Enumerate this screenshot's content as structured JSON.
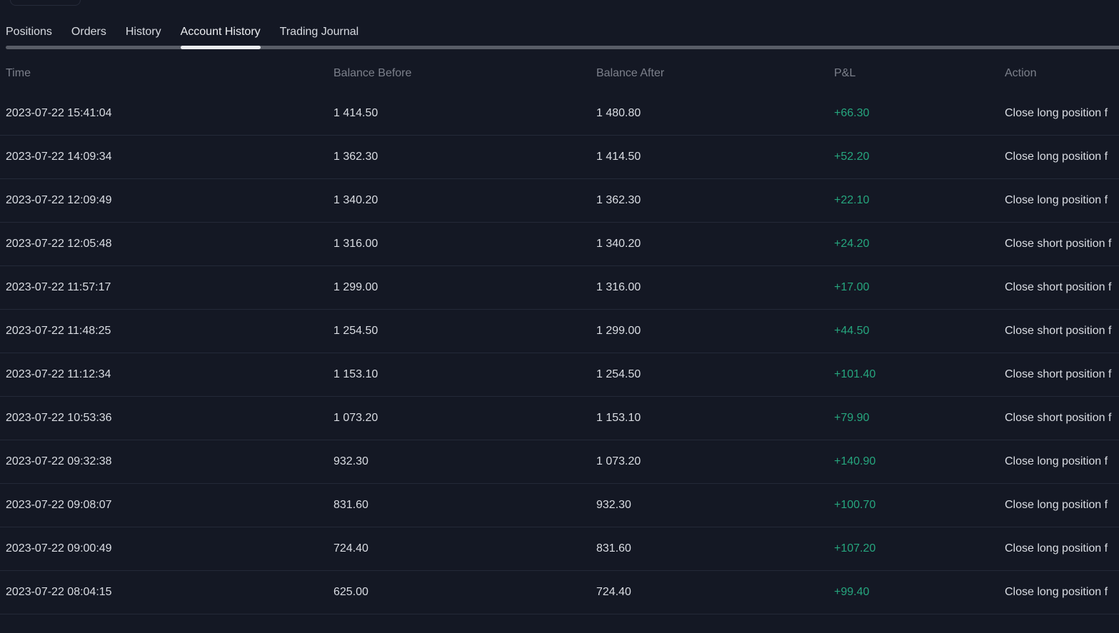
{
  "theme": {
    "background": "#141824",
    "divider": "#242938",
    "text_primary": "#dadde3",
    "text_muted": "#7c808b",
    "tab_track": "#585c66",
    "tab_indicator": "#e9ebee",
    "pnl_positive": "#26a67e"
  },
  "tabs": {
    "items": [
      {
        "label": "Positions",
        "active": false
      },
      {
        "label": "Orders",
        "active": false
      },
      {
        "label": "History",
        "active": false
      },
      {
        "label": "Account History",
        "active": true
      },
      {
        "label": "Trading Journal",
        "active": false
      }
    ]
  },
  "table": {
    "columns": [
      "Time",
      "Balance Before",
      "Balance After",
      "P&L",
      "Action"
    ],
    "rows": [
      {
        "time": "2023-07-22 15:41:04",
        "balance_before": "1 414.50",
        "balance_after": "1 480.80",
        "pnl": "+66.30",
        "action": "Close long position f"
      },
      {
        "time": "2023-07-22 14:09:34",
        "balance_before": "1 362.30",
        "balance_after": "1 414.50",
        "pnl": "+52.20",
        "action": "Close long position f"
      },
      {
        "time": "2023-07-22 12:09:49",
        "balance_before": "1 340.20",
        "balance_after": "1 362.30",
        "pnl": "+22.10",
        "action": "Close long position f"
      },
      {
        "time": "2023-07-22 12:05:48",
        "balance_before": "1 316.00",
        "balance_after": "1 340.20",
        "pnl": "+24.20",
        "action": "Close short position f"
      },
      {
        "time": "2023-07-22 11:57:17",
        "balance_before": "1 299.00",
        "balance_after": "1 316.00",
        "pnl": "+17.00",
        "action": "Close short position f"
      },
      {
        "time": "2023-07-22 11:48:25",
        "balance_before": "1 254.50",
        "balance_after": "1 299.00",
        "pnl": "+44.50",
        "action": "Close short position f"
      },
      {
        "time": "2023-07-22 11:12:34",
        "balance_before": "1 153.10",
        "balance_after": "1 254.50",
        "pnl": "+101.40",
        "action": "Close short position f"
      },
      {
        "time": "2023-07-22 10:53:36",
        "balance_before": "1 073.20",
        "balance_after": "1 153.10",
        "pnl": "+79.90",
        "action": "Close short position f"
      },
      {
        "time": "2023-07-22 09:32:38",
        "balance_before": "932.30",
        "balance_after": "1 073.20",
        "pnl": "+140.90",
        "action": "Close long position f"
      },
      {
        "time": "2023-07-22 09:08:07",
        "balance_before": "831.60",
        "balance_after": "932.30",
        "pnl": "+100.70",
        "action": "Close long position f"
      },
      {
        "time": "2023-07-22 09:00:49",
        "balance_before": "724.40",
        "balance_after": "831.60",
        "pnl": "+107.20",
        "action": "Close long position f"
      },
      {
        "time": "2023-07-22 08:04:15",
        "balance_before": "625.00",
        "balance_after": "724.40",
        "pnl": "+99.40",
        "action": "Close long position f"
      }
    ]
  }
}
